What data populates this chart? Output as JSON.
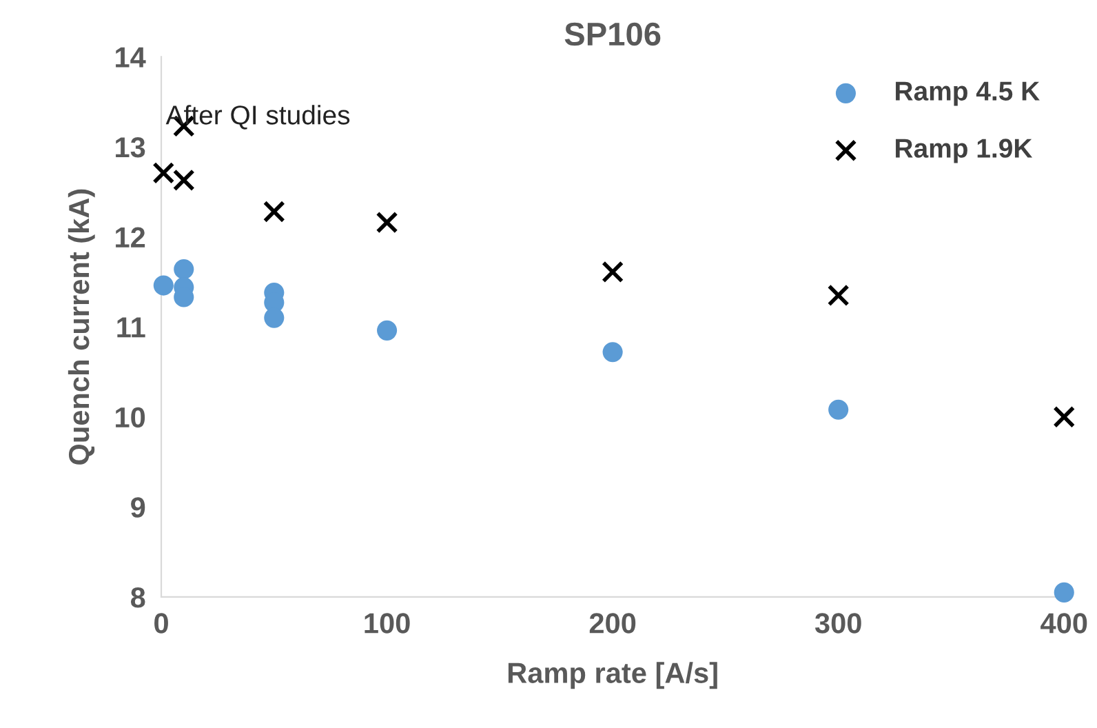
{
  "chart_data": {
    "type": "scatter",
    "title": "SP106",
    "xlabel": "Ramp rate [A/s]",
    "ylabel": "Quench current (kA)",
    "series": [
      {
        "name": "Ramp 4.5 K",
        "color": "#5b9bd5",
        "marker": "circle",
        "x": [
          1,
          10,
          10,
          10,
          50,
          50,
          50,
          100,
          200,
          300,
          400
        ],
        "values": [
          11.46,
          11.64,
          11.44,
          11.33,
          11.38,
          11.27,
          11.1,
          10.96,
          10.72,
          10.08,
          8.05
        ]
      },
      {
        "name": "Ramp 1.9K",
        "color": "#000000",
        "marker": "cross",
        "x": [
          1,
          10,
          10,
          50,
          100,
          200,
          300,
          400
        ],
        "values": [
          12.71,
          13.23,
          12.63,
          12.28,
          12.16,
          11.61,
          11.35,
          10.0
        ]
      }
    ],
    "annotations": [
      "After QI studies"
    ],
    "xlim": [
      0,
      400
    ],
    "xticks": [
      0,
      100,
      200,
      300,
      400
    ],
    "ylim": [
      8,
      14
    ],
    "yticks": [
      8,
      9,
      10,
      11,
      12,
      13,
      14
    ],
    "grid": false,
    "legend": "top right"
  }
}
